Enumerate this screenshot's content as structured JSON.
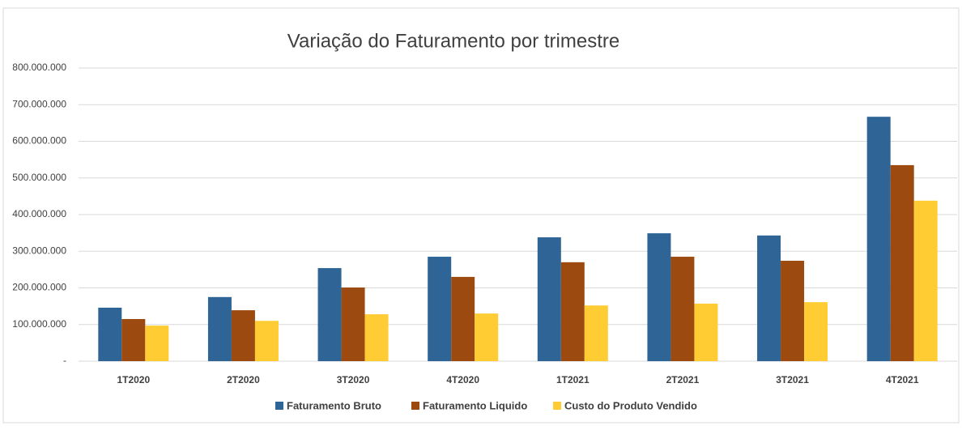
{
  "chart_data": {
    "type": "bar",
    "title": "Variação do Faturamento por trimestre",
    "categories": [
      "1T2020",
      "2T2020",
      "3T2020",
      "4T2020",
      "1T2021",
      "2T2021",
      "3T2021",
      "4T2021"
    ],
    "series": [
      {
        "name": "Faturamento Bruto",
        "color": "#2e6496",
        "values": [
          146000000,
          175000000,
          254000000,
          285000000,
          338000000,
          349000000,
          343000000,
          667000000
        ]
      },
      {
        "name": "Faturamento Liquido",
        "color": "#9c4a10",
        "values": [
          115000000,
          139000000,
          201000000,
          230000000,
          270000000,
          285000000,
          274000000,
          535000000
        ]
      },
      {
        "name": "Custo do Produto Vendido",
        "color": "#ffcc33",
        "values": [
          97000000,
          110000000,
          128000000,
          130000000,
          152000000,
          157000000,
          161000000,
          438000000
        ]
      }
    ],
    "ylim": [
      0,
      800000000
    ],
    "yticks": [
      {
        "value": 0,
        "label": "-"
      },
      {
        "value": 100000000,
        "label": "100.000.000"
      },
      {
        "value": 200000000,
        "label": "200.000.000"
      },
      {
        "value": 300000000,
        "label": "300.000.000"
      },
      {
        "value": 400000000,
        "label": "400.000.000"
      },
      {
        "value": 500000000,
        "label": "500.000.000"
      },
      {
        "value": 600000000,
        "label": "600.000.000"
      },
      {
        "value": 700000000,
        "label": "700.000.000"
      },
      {
        "value": 800000000,
        "label": "800.000.000"
      }
    ],
    "grid": true,
    "legend": "bottom"
  }
}
